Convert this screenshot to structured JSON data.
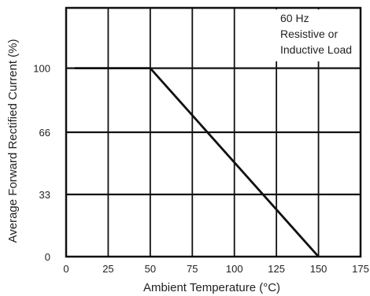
{
  "chart_data": {
    "type": "line",
    "title": "",
    "xlabel": "Ambient Temperature (°C)",
    "ylabel": "Average Forward Rectified Current (%)",
    "xlim": [
      0,
      175
    ],
    "ylim": [
      0,
      132
    ],
    "x_ticks": [
      0,
      25,
      50,
      75,
      100,
      125,
      150,
      175
    ],
    "y_ticks": [
      0,
      33,
      66,
      100
    ],
    "grid": true,
    "legend": "none",
    "annotation_lines": [
      "60 Hz",
      "Resistive or",
      "Inductive Load"
    ],
    "series": [
      {
        "x": [
          5,
          50,
          150
        ],
        "y": [
          100,
          100,
          0
        ],
        "color": "#111111"
      }
    ]
  }
}
